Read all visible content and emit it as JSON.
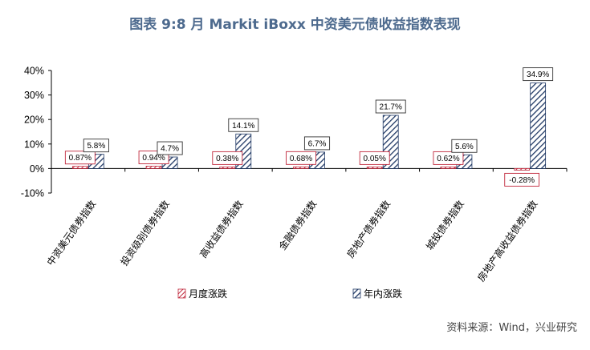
{
  "title": "图表 9:8 月 Markit iBoxx 中资美元债收益指数表现",
  "source": "资料来源：Wind，兴业研究",
  "colors": {
    "monthly": "#c0283c",
    "yearly": "#1f3864",
    "title": "#4d6a8e"
  },
  "chart_data": {
    "type": "bar",
    "categories": [
      "中资美元债券指数",
      "投资级别债券指数",
      "高收益债券指数",
      "金融债券指数",
      "房地产债券指数",
      "城投债券指数",
      "房地产高收益债券指数"
    ],
    "series": [
      {
        "name": "月度涨跌",
        "values": [
          0.87,
          0.94,
          0.38,
          0.68,
          0.05,
          0.62,
          -0.28
        ],
        "labels": [
          "0.87%",
          "0.94%",
          "0.38%",
          "0.68%",
          "0.05%",
          "0.62%",
          "-0.28%"
        ]
      },
      {
        "name": "年内涨跌",
        "values": [
          5.8,
          4.7,
          14.1,
          6.7,
          21.7,
          5.6,
          34.9
        ],
        "labels": [
          "5.8%",
          "4.7%",
          "14.1%",
          "6.7%",
          "21.7%",
          "5.6%",
          "34.9%"
        ]
      }
    ],
    "ylim": [
      -10,
      40
    ],
    "yticks": [
      "-10%",
      "0%",
      "10%",
      "20%",
      "30%",
      "40%"
    ],
    "legend": "bottom"
  }
}
